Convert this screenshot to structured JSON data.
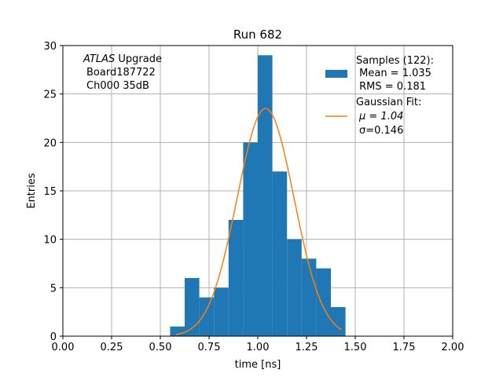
{
  "chart_data": {
    "type": "bar",
    "title": "Run 682",
    "xlabel": "time [ns]",
    "ylabel": "Entries",
    "xlim": [
      0.0,
      2.0
    ],
    "ylim": [
      0,
      30
    ],
    "xticks": [
      "0.00",
      "0.25",
      "0.50",
      "0.75",
      "1.00",
      "1.25",
      "1.50",
      "1.75",
      "2.00"
    ],
    "yticks": [
      "0",
      "5",
      "10",
      "15",
      "20",
      "25",
      "30"
    ],
    "grid": true,
    "legend_position": "top-right",
    "bin_width": 0.075,
    "histogram": {
      "bin_starts": [
        0.55,
        0.625,
        0.7,
        0.775,
        0.85,
        0.925,
        1.0,
        1.075,
        1.15,
        1.225,
        1.3,
        1.375
      ],
      "counts": [
        1,
        6,
        4,
        5,
        12,
        20,
        29,
        17,
        10,
        8,
        7,
        3
      ],
      "color": "#1f77b4"
    },
    "gaussian_fit": {
      "amplitude": 23.5,
      "mu": 1.04,
      "sigma": 0.146,
      "x_range": [
        0.58,
        1.43
      ],
      "color": "#ff7f0e"
    },
    "legend": {
      "samples_title": "Samples (122):",
      "samples_mean": " Mean = 1.035",
      "samples_rms": " RMS = 0.181",
      "fit_title": "Gaussian Fit:",
      "fit_mu": "μ = 1.04",
      "fit_sigma": "σ=0.146"
    },
    "annotation": {
      "atlas": "ATLAS",
      "upgrade": " Upgrade",
      "board": "Board187722",
      "channel": "Ch000 35dB"
    }
  }
}
